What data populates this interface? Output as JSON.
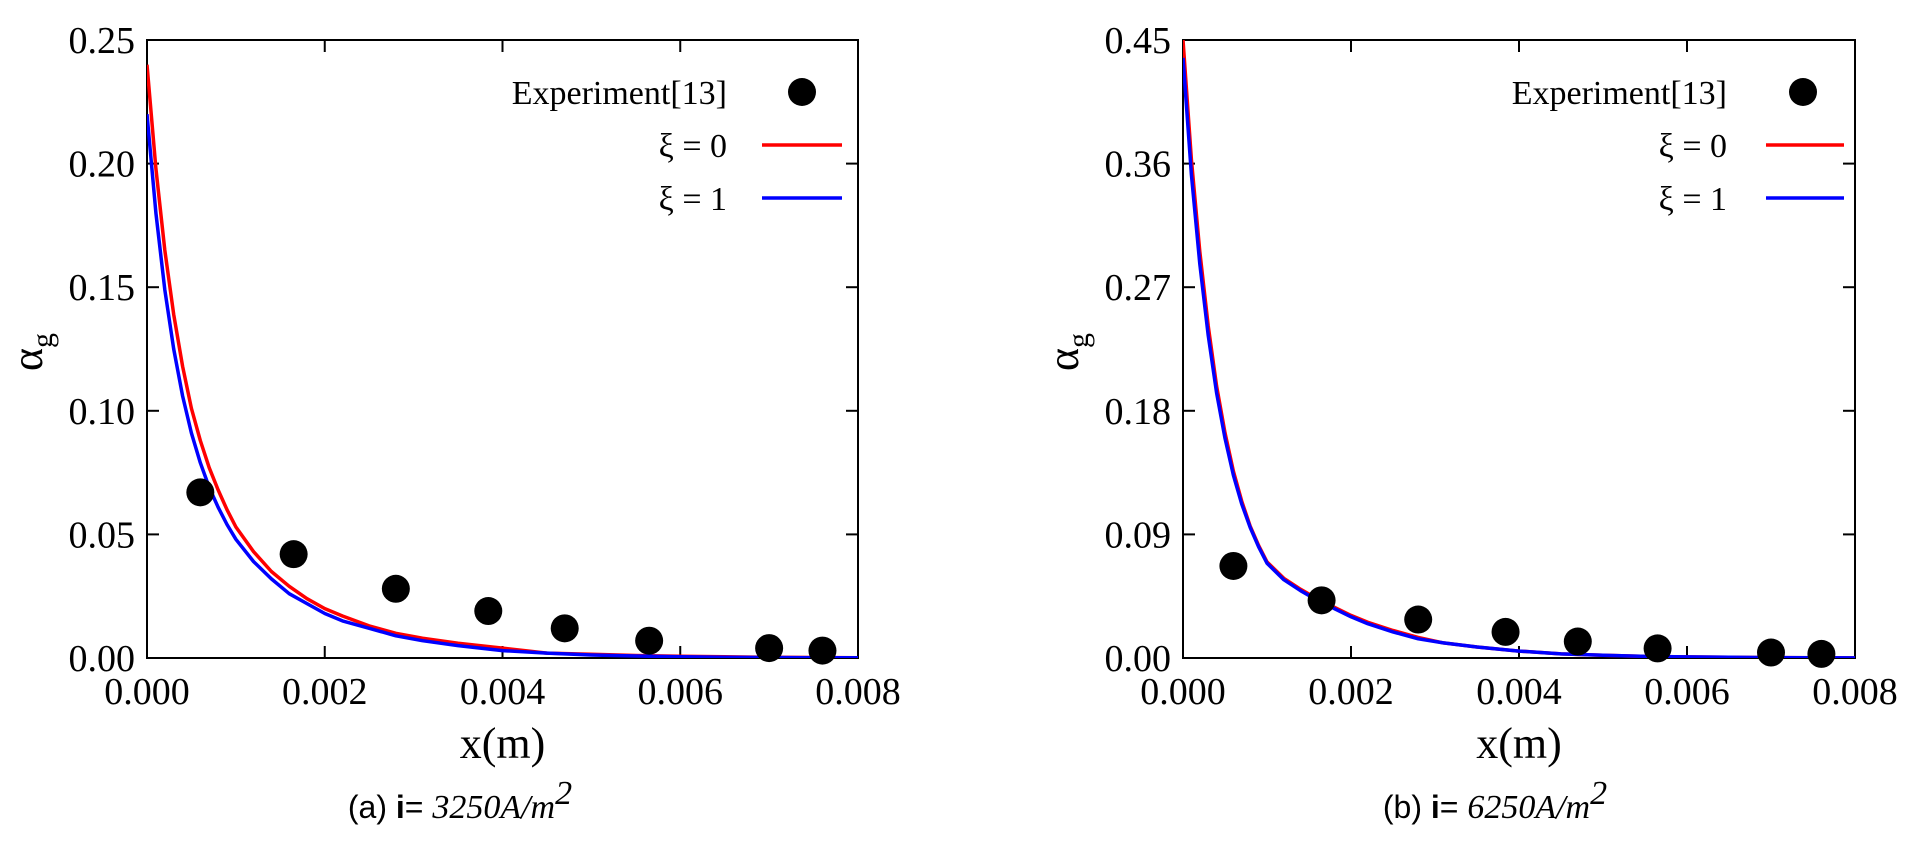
{
  "chart_data": [
    {
      "type": "line",
      "caption": {
        "prefix": "(a) ",
        "variable": "i",
        "equals": "= ",
        "value": "3250",
        "unit": "A/m",
        "exponent": "2"
      },
      "xlabel": "x(m)",
      "ylabel": "α",
      "ylabel_sub": "g",
      "xlim": [
        0,
        0.008
      ],
      "ylim": [
        0,
        0.25
      ],
      "xticks": [
        0.0,
        0.002,
        0.004,
        0.006,
        0.008
      ],
      "xtick_labels": [
        "0.000",
        "0.002",
        "0.004",
        "0.006",
        "0.008"
      ],
      "yticks": [
        0.0,
        0.05,
        0.1,
        0.15,
        0.2,
        0.25
      ],
      "ytick_labels": [
        "0.00",
        "0.05",
        "0.10",
        "0.15",
        "0.20",
        "0.25"
      ],
      "legend_position": "top-right",
      "scatter": {
        "name": "Experiment[13]",
        "color": "#000000",
        "x": [
          0.0006,
          0.00165,
          0.0028,
          0.00384,
          0.0047,
          0.00565,
          0.007,
          0.0076
        ],
        "y": [
          0.067,
          0.042,
          0.028,
          0.019,
          0.012,
          0.007,
          0.004,
          0.003
        ]
      },
      "series": [
        {
          "name": "ξ = 0",
          "color": "#ff0000",
          "x": [
            0.0,
            0.0001,
            0.0002,
            0.0003,
            0.0004,
            0.0005,
            0.0006,
            0.0007,
            0.0008,
            0.0009,
            0.001,
            0.0012,
            0.0014,
            0.0016,
            0.0018,
            0.002,
            0.0022,
            0.0025,
            0.0028,
            0.0031,
            0.0035,
            0.004,
            0.0045,
            0.005,
            0.0055,
            0.006,
            0.0065,
            0.007,
            0.0075,
            0.008
          ],
          "y": [
            0.24,
            0.198,
            0.165,
            0.139,
            0.118,
            0.101,
            0.088,
            0.077,
            0.068,
            0.06,
            0.053,
            0.043,
            0.035,
            0.029,
            0.024,
            0.02,
            0.017,
            0.013,
            0.01,
            0.008,
            0.006,
            0.004,
            0.002,
            0.0015,
            0.001,
            0.0007,
            0.0005,
            0.0003,
            0.0002,
            0.0001
          ]
        },
        {
          "name": "ξ = 1",
          "color": "#0000ff",
          "x": [
            0.0,
            0.0001,
            0.0002,
            0.0003,
            0.0004,
            0.0005,
            0.0006,
            0.0007,
            0.0008,
            0.0009,
            0.001,
            0.0012,
            0.0014,
            0.0016,
            0.0018,
            0.002,
            0.0022,
            0.0025,
            0.0028,
            0.0031,
            0.0035,
            0.004,
            0.0045,
            0.005,
            0.0055,
            0.006,
            0.0065,
            0.007,
            0.0075,
            0.008
          ],
          "y": [
            0.22,
            0.18,
            0.149,
            0.125,
            0.106,
            0.091,
            0.079,
            0.069,
            0.061,
            0.054,
            0.048,
            0.039,
            0.032,
            0.026,
            0.022,
            0.018,
            0.015,
            0.012,
            0.009,
            0.007,
            0.005,
            0.003,
            0.002,
            0.0012,
            0.0008,
            0.0005,
            0.0003,
            0.0002,
            0.0001,
            0.0001
          ]
        }
      ]
    },
    {
      "type": "line",
      "caption": {
        "prefix": "(b) ",
        "variable": "i",
        "equals": "= ",
        "value": "6250",
        "unit": "A/m",
        "exponent": "2"
      },
      "xlabel": "x(m)",
      "ylabel": "α",
      "ylabel_sub": "g",
      "xlim": [
        0,
        0.008
      ],
      "ylim": [
        0,
        0.45
      ],
      "xticks": [
        0.0,
        0.002,
        0.004,
        0.006,
        0.008
      ],
      "xtick_labels": [
        "0.000",
        "0.002",
        "0.004",
        "0.006",
        "0.008"
      ],
      "yticks": [
        0.0,
        0.09,
        0.18,
        0.27,
        0.36,
        0.45
      ],
      "ytick_labels": [
        "0.00",
        "0.09",
        "0.18",
        "0.27",
        "0.36",
        "0.45"
      ],
      "legend_position": "top-right",
      "scatter": {
        "name": "Experiment[13]",
        "color": "#000000",
        "x": [
          0.0006,
          0.00165,
          0.0028,
          0.00384,
          0.0047,
          0.00565,
          0.007,
          0.0076
        ],
        "y": [
          0.067,
          0.042,
          0.028,
          0.019,
          0.012,
          0.007,
          0.004,
          0.003
        ]
      },
      "series": [
        {
          "name": "ξ = 0",
          "color": "#ff0000",
          "x": [
            0.0,
            0.0001,
            0.0002,
            0.0003,
            0.0004,
            0.0005,
            0.0006,
            0.0007,
            0.0008,
            0.0009,
            0.001,
            0.0012,
            0.0014,
            0.0016,
            0.0018,
            0.002,
            0.0022,
            0.0025,
            0.0028,
            0.0031,
            0.0035,
            0.004,
            0.0045,
            0.005,
            0.0055,
            0.006,
            0.0065,
            0.007,
            0.0075,
            0.008
          ],
          "y": [
            0.45,
            0.363,
            0.296,
            0.242,
            0.198,
            0.164,
            0.136,
            0.114,
            0.096,
            0.082,
            0.07,
            0.058,
            0.05,
            0.043,
            0.037,
            0.031,
            0.026,
            0.02,
            0.015,
            0.011,
            0.008,
            0.005,
            0.003,
            0.002,
            0.0012,
            0.0008,
            0.0005,
            0.0003,
            0.0002,
            0.0001
          ]
        },
        {
          "name": "ξ = 1",
          "color": "#0000ff",
          "x": [
            0.0,
            0.0001,
            0.0002,
            0.0003,
            0.0004,
            0.0005,
            0.0006,
            0.0007,
            0.0008,
            0.0009,
            0.001,
            0.0012,
            0.0014,
            0.0016,
            0.0018,
            0.002,
            0.0022,
            0.0025,
            0.0028,
            0.0031,
            0.0035,
            0.004,
            0.0045,
            0.005,
            0.0055,
            0.006,
            0.0065,
            0.007,
            0.0075,
            0.008
          ],
          "y": [
            0.437,
            0.352,
            0.287,
            0.235,
            0.193,
            0.16,
            0.133,
            0.112,
            0.095,
            0.081,
            0.069,
            0.057,
            0.049,
            0.042,
            0.036,
            0.03,
            0.025,
            0.019,
            0.014,
            0.011,
            0.008,
            0.005,
            0.003,
            0.002,
            0.0012,
            0.0008,
            0.0005,
            0.0003,
            0.0002,
            0.0001
          ]
        }
      ]
    }
  ]
}
